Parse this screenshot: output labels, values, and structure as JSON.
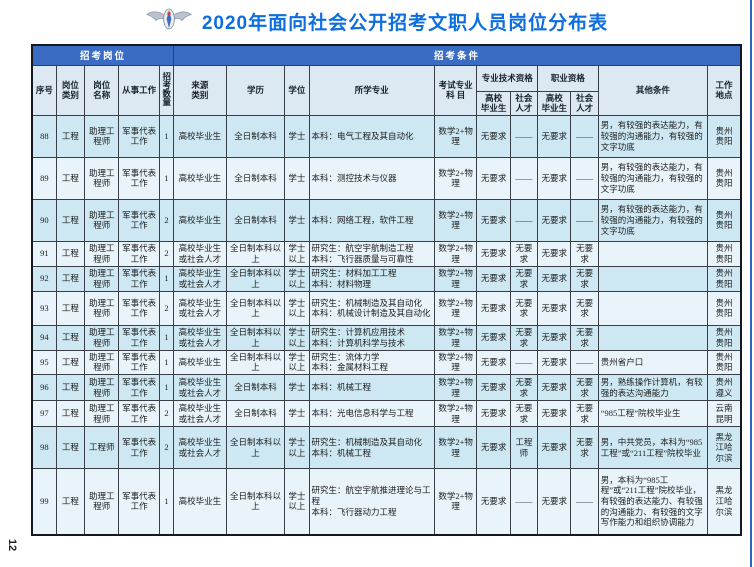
{
  "page": {
    "title": "2020年面向社会公开招考文职人员岗位分布表",
    "page_number": "12",
    "logo": "air-force-wings-emblem"
  },
  "colors": {
    "title_blue": "#0d6ee0",
    "header_band_blue": "#3b6cc4",
    "subheader_bg": "#dce8f2",
    "row_even": "#cde8f3",
    "row_odd": "#e9f4fa"
  },
  "table": {
    "band_position": "招考岗位",
    "band_condition": "招考条件",
    "columns": {
      "no": "序号",
      "category": "岗位\n类别",
      "name": "岗位\n名称",
      "work": "从事工作",
      "count": "招考数量",
      "source": "来源\n类别",
      "education": "学历",
      "degree": "学位",
      "major": "所学专业",
      "exam": "考试专业\n科  目",
      "tech_group": "专业技术资格",
      "prof_group": "职业资格",
      "tech_grad": "高校\n毕业生",
      "tech_social": "社会\n人才",
      "prof_grad": "高校\n毕业生",
      "prof_social": "社会\n人才",
      "other": "其他条件",
      "location": "工作\n地点"
    },
    "rows": [
      {
        "no": "88",
        "category": "工程",
        "name": "助理工程师",
        "work": "军事代表工作",
        "count": "1",
        "source": "高校毕业生",
        "education": "全日制本科",
        "degree": "学士",
        "major": "本科：电气工程及其自动化",
        "exam": "数学2+物理",
        "tech_grad": "无要求",
        "tech_social": "——",
        "prof_grad": "无要求",
        "prof_social": "——",
        "other": "男，有较强的表达能力，有较强的沟通能力，有较强的文字功底",
        "location": "贵州\n贵阳"
      },
      {
        "no": "89",
        "category": "工程",
        "name": "助理工程师",
        "work": "军事代表工作",
        "count": "1",
        "source": "高校毕业生",
        "education": "全日制本科",
        "degree": "学士",
        "major": "本科：测控技术与仪器",
        "exam": "数学2+物理",
        "tech_grad": "无要求",
        "tech_social": "——",
        "prof_grad": "无要求",
        "prof_social": "——",
        "other": "男，有较强的表达能力，有较强的沟通能力，有较强的文字功底",
        "location": "贵州\n贵阳"
      },
      {
        "no": "90",
        "category": "工程",
        "name": "助理工程师",
        "work": "军事代表工作",
        "count": "2",
        "source": "高校毕业生",
        "education": "全日制本科",
        "degree": "学士",
        "major": "本科：网络工程，软件工程",
        "exam": "数学2+物理",
        "tech_grad": "无要求",
        "tech_social": "——",
        "prof_grad": "无要求",
        "prof_social": "——",
        "other": "男，有较强的表达能力，有较强的沟通能力，有较强的文字功底",
        "location": "贵州\n贵阳"
      },
      {
        "no": "91",
        "category": "工程",
        "name": "助理工程师",
        "work": "军事代表工作",
        "count": "2",
        "source": "高校毕业生或社会人才",
        "education": "全日制本科以上",
        "degree": "学士以上",
        "major": "研究生：航空宇航制造工程\n本科：飞行器质量与可靠性",
        "exam": "数学2+物理",
        "tech_grad": "无要求",
        "tech_social": "无要求",
        "prof_grad": "无要求",
        "prof_social": "无要求",
        "other": "",
        "location": "贵州\n贵阳"
      },
      {
        "no": "92",
        "category": "工程",
        "name": "助理工程师",
        "work": "军事代表工作",
        "count": "1",
        "source": "高校毕业生或社会人才",
        "education": "全日制本科以上",
        "degree": "学士以上",
        "major": "研究生：材料加工工程\n本科：材料物理",
        "exam": "数学2+物理",
        "tech_grad": "无要求",
        "tech_social": "无要求",
        "prof_grad": "无要求",
        "prof_social": "无要求",
        "other": "",
        "location": "贵州\n贵阳"
      },
      {
        "no": "93",
        "category": "工程",
        "name": "助理工程师",
        "work": "军事代表工作",
        "count": "2",
        "source": "高校毕业生或社会人才",
        "education": "全日制本科以上",
        "degree": "学士以上",
        "major": "研究生：机械制造及其自动化\n本科：机械设计制造及其自动化",
        "exam": "数学2+物理",
        "tech_grad": "无要求",
        "tech_social": "无要求",
        "prof_grad": "无要求",
        "prof_social": "无要求",
        "other": "",
        "location": "贵州\n贵阳"
      },
      {
        "no": "94",
        "category": "工程",
        "name": "助理工程师",
        "work": "军事代表工作",
        "count": "1",
        "source": "高校毕业生或社会人才",
        "education": "全日制本科以上",
        "degree": "学士以上",
        "major": "研究生：计算机应用技术\n本科：计算机科学与技术",
        "exam": "数学2+物理",
        "tech_grad": "无要求",
        "tech_social": "无要求",
        "prof_grad": "无要求",
        "prof_social": "无要求",
        "other": "",
        "location": "贵州\n贵阳"
      },
      {
        "no": "95",
        "category": "工程",
        "name": "助理工程师",
        "work": "军事代表工作",
        "count": "1",
        "source": "高校毕业生",
        "education": "全日制本科以上",
        "degree": "学士以上",
        "major": "研究生：流体力学\n本科：金属材料工程",
        "exam": "数学2+物理",
        "tech_grad": "无要求",
        "tech_social": "——",
        "prof_grad": "无要求",
        "prof_social": "——",
        "other": "贵州省户口",
        "location": "贵州\n贵阳"
      },
      {
        "no": "96",
        "category": "工程",
        "name": "助理工程师",
        "work": "军事代表工作",
        "count": "1",
        "source": "高校毕业生或社会人才",
        "education": "全日制本科",
        "degree": "学士",
        "major": "本科：机械工程",
        "exam": "数学2+物理",
        "tech_grad": "无要求",
        "tech_social": "无要求",
        "prof_grad": "无要求",
        "prof_social": "无要求",
        "other": "男，熟练操作计算机，有较强的表达沟通能力",
        "location": "贵州\n遵义"
      },
      {
        "no": "97",
        "category": "工程",
        "name": "助理工程师",
        "work": "军事代表工作",
        "count": "2",
        "source": "高校毕业生或社会人才",
        "education": "全日制本科",
        "degree": "学士",
        "major": "本科：光电信息科学与工程",
        "exam": "数学2+物理",
        "tech_grad": "无要求",
        "tech_social": "无要求",
        "prof_grad": "无要求",
        "prof_social": "无要求",
        "other": "“985工程”院校毕业生",
        "location": "云南\n昆明"
      },
      {
        "no": "98",
        "category": "工程",
        "name": "工程师",
        "work": "军事代表工作",
        "count": "2",
        "source": "高校毕业生或社会人才",
        "education": "全日制本科以上",
        "degree": "学士以上",
        "major": "研究生：机械制造及其自动化\n本科：机械工程",
        "exam": "数学2+物理",
        "tech_grad": "无要求",
        "tech_social": "工程师",
        "prof_grad": "无要求",
        "prof_social": "无要求",
        "other": "男，中共党员，本科为“985工程”或“211工程”院校毕业",
        "location": "黑龙\n江哈\n尔滨"
      },
      {
        "no": "99",
        "category": "工程",
        "name": "助理工程师",
        "work": "军事代表工作",
        "count": "1",
        "source": "高校毕业生",
        "education": "全日制本科以上",
        "degree": "学士以上",
        "major": "研究生：航空宇航推进理论与工程\n本科：飞行器动力工程",
        "exam": "数学2+物理",
        "tech_grad": "无要求",
        "tech_social": "——",
        "prof_grad": "无要求",
        "prof_social": "——",
        "other": "男，本科为“985工程”或“211工程”院校毕业，有较强的表达能力、有较强的沟通能力、有较强的文字写作能力和组织协调能力",
        "location": "黑龙\n江哈\n尔滨"
      }
    ]
  }
}
